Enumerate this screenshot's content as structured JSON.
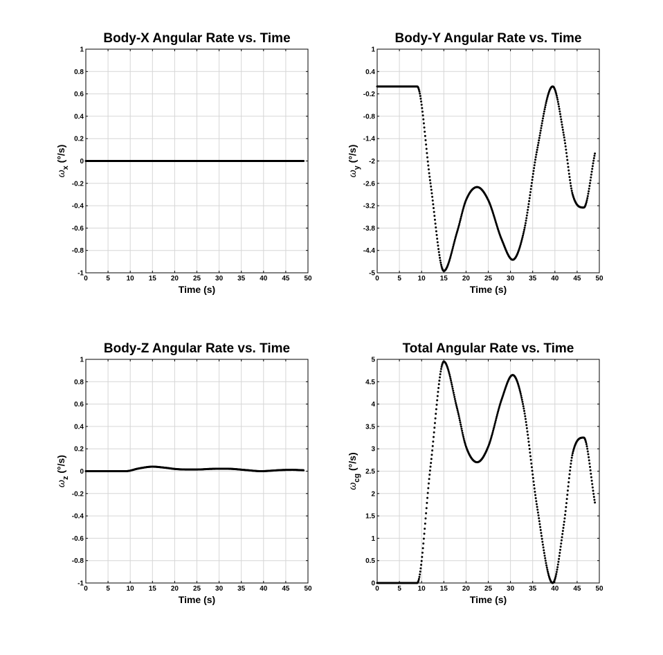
{
  "chart_data": [
    {
      "type": "scatter",
      "title": "Body-X Angular Rate vs. Time",
      "xlabel": "Time (s)",
      "ylabel_symbol": "ω",
      "ylabel_sub": "x",
      "ylabel_unit": "(°/s)",
      "xlim": [
        0,
        50
      ],
      "ylim": [
        -1,
        1
      ],
      "xticks": [
        0,
        5,
        10,
        15,
        20,
        25,
        30,
        35,
        40,
        45,
        50
      ],
      "yticks": [
        -1,
        -0.8,
        -0.6,
        -0.4,
        -0.2,
        0,
        0.2,
        0.4,
        0.6,
        0.8,
        1
      ],
      "grid": true,
      "x": [
        0,
        5,
        9,
        12,
        15,
        18,
        20,
        22.5,
        25,
        28,
        30.5,
        33,
        36,
        39.5,
        42,
        44,
        46.5,
        49
      ],
      "y": [
        0,
        0,
        0,
        0,
        0,
        0,
        0,
        0,
        0,
        0,
        0,
        0,
        0,
        0,
        0,
        0,
        0,
        0
      ]
    },
    {
      "type": "scatter",
      "title": "Body-Y Angular Rate vs. Time",
      "xlabel": "Time (s)",
      "ylabel_symbol": "ω",
      "ylabel_sub": "y",
      "ylabel_unit": "(°/s)",
      "xlim": [
        0,
        50
      ],
      "ylim": [
        -5,
        1
      ],
      "xticks": [
        0,
        5,
        10,
        15,
        20,
        25,
        30,
        35,
        40,
        45,
        50
      ],
      "yticks": [
        -5,
        -4.4,
        -3.8,
        -3.2,
        -2.6,
        -2,
        -1.4,
        -0.8,
        -0.2,
        0.4,
        1
      ],
      "grid": true,
      "x": [
        0,
        5,
        9,
        12,
        15,
        18,
        20,
        22.5,
        25,
        28,
        30.5,
        33,
        36,
        39.5,
        42,
        44,
        46.5,
        49
      ],
      "y": [
        0,
        0,
        0,
        -2.6,
        -4.95,
        -3.9,
        -3.05,
        -2.7,
        -3.05,
        -4.1,
        -4.65,
        -3.9,
        -1.7,
        0,
        -1.3,
        -2.9,
        -3.25,
        -1.8
      ]
    },
    {
      "type": "scatter",
      "title": "Body-Z Angular Rate vs. Time",
      "xlabel": "Time (s)",
      "ylabel_symbol": "ω",
      "ylabel_sub": "z",
      "ylabel_unit": "(°/s)",
      "xlim": [
        0,
        50
      ],
      "ylim": [
        -1,
        1
      ],
      "xticks": [
        0,
        5,
        10,
        15,
        20,
        25,
        30,
        35,
        40,
        45,
        50
      ],
      "yticks": [
        -1,
        -0.8,
        -0.6,
        -0.4,
        -0.2,
        0,
        0.2,
        0.4,
        0.6,
        0.8,
        1
      ],
      "grid": true,
      "x": [
        0,
        5,
        9,
        12,
        15,
        18,
        20,
        22.5,
        25,
        28,
        30.5,
        33,
        36,
        39.5,
        42,
        44,
        46.5,
        49
      ],
      "y": [
        0,
        0,
        0,
        0.025,
        0.04,
        0.03,
        0.02,
        0.015,
        0.015,
        0.02,
        0.022,
        0.02,
        0.01,
        0,
        0.005,
        0.01,
        0.012,
        0.008
      ]
    },
    {
      "type": "scatter",
      "title": "Total Angular Rate vs. Time",
      "xlabel": "Time (s)",
      "ylabel_symbol": "ω",
      "ylabel_sub": "cg",
      "ylabel_unit": "(°/s)",
      "xlim": [
        0,
        50
      ],
      "ylim": [
        0,
        5
      ],
      "xticks": [
        0,
        5,
        10,
        15,
        20,
        25,
        30,
        35,
        40,
        45,
        50
      ],
      "yticks": [
        0,
        0.5,
        1,
        1.5,
        2,
        2.5,
        3,
        3.5,
        4,
        4.5,
        5
      ],
      "grid": true,
      "x": [
        0,
        5,
        9,
        12,
        15,
        18,
        20,
        22.5,
        25,
        28,
        30.5,
        33,
        36,
        39.5,
        42,
        44,
        46.5,
        49
      ],
      "y": [
        0,
        0,
        0,
        2.6,
        4.95,
        3.9,
        3.05,
        2.7,
        3.05,
        4.1,
        4.65,
        3.9,
        1.7,
        0,
        1.3,
        2.9,
        3.25,
        1.8
      ]
    }
  ]
}
